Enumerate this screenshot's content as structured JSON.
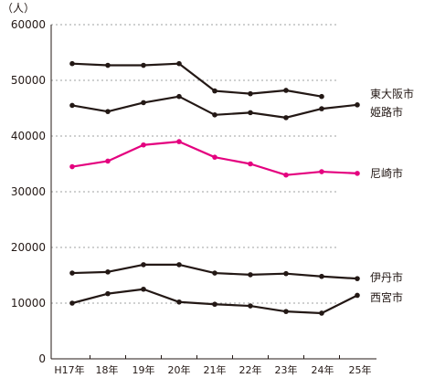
{
  "chart_data": {
    "type": "line",
    "unit_label": "（人）",
    "categories": [
      "H17年",
      "18年",
      "19年",
      "20年",
      "21年",
      "22年",
      "23年",
      "24年",
      "25年"
    ],
    "ylim": [
      0,
      60000
    ],
    "yticks": [
      0,
      10000,
      20000,
      30000,
      40000,
      50000,
      60000
    ],
    "grid": true,
    "series": [
      {
        "name": "東大阪市",
        "color": "#231815",
        "values": [
          53000,
          52700,
          52700,
          53000,
          48100,
          47600,
          48200,
          47100,
          null
        ]
      },
      {
        "name": "姫路市",
        "color": "#231815",
        "values": [
          45500,
          44400,
          46000,
          47100,
          43800,
          44200,
          43300,
          44900,
          45600
        ]
      },
      {
        "name": "尼崎市",
        "color": "#e4007f",
        "values": [
          34500,
          35500,
          38400,
          39000,
          36200,
          35000,
          33000,
          33600,
          33300
        ]
      },
      {
        "name": "伊丹市",
        "color": "#231815",
        "values": [
          15400,
          15600,
          16900,
          16900,
          15400,
          15100,
          15300,
          14800,
          14400
        ]
      },
      {
        "name": "西宮市",
        "color": "#231815",
        "values": [
          10000,
          11700,
          12500,
          10200,
          9800,
          9500,
          8500,
          8200,
          11400
        ]
      }
    ]
  }
}
